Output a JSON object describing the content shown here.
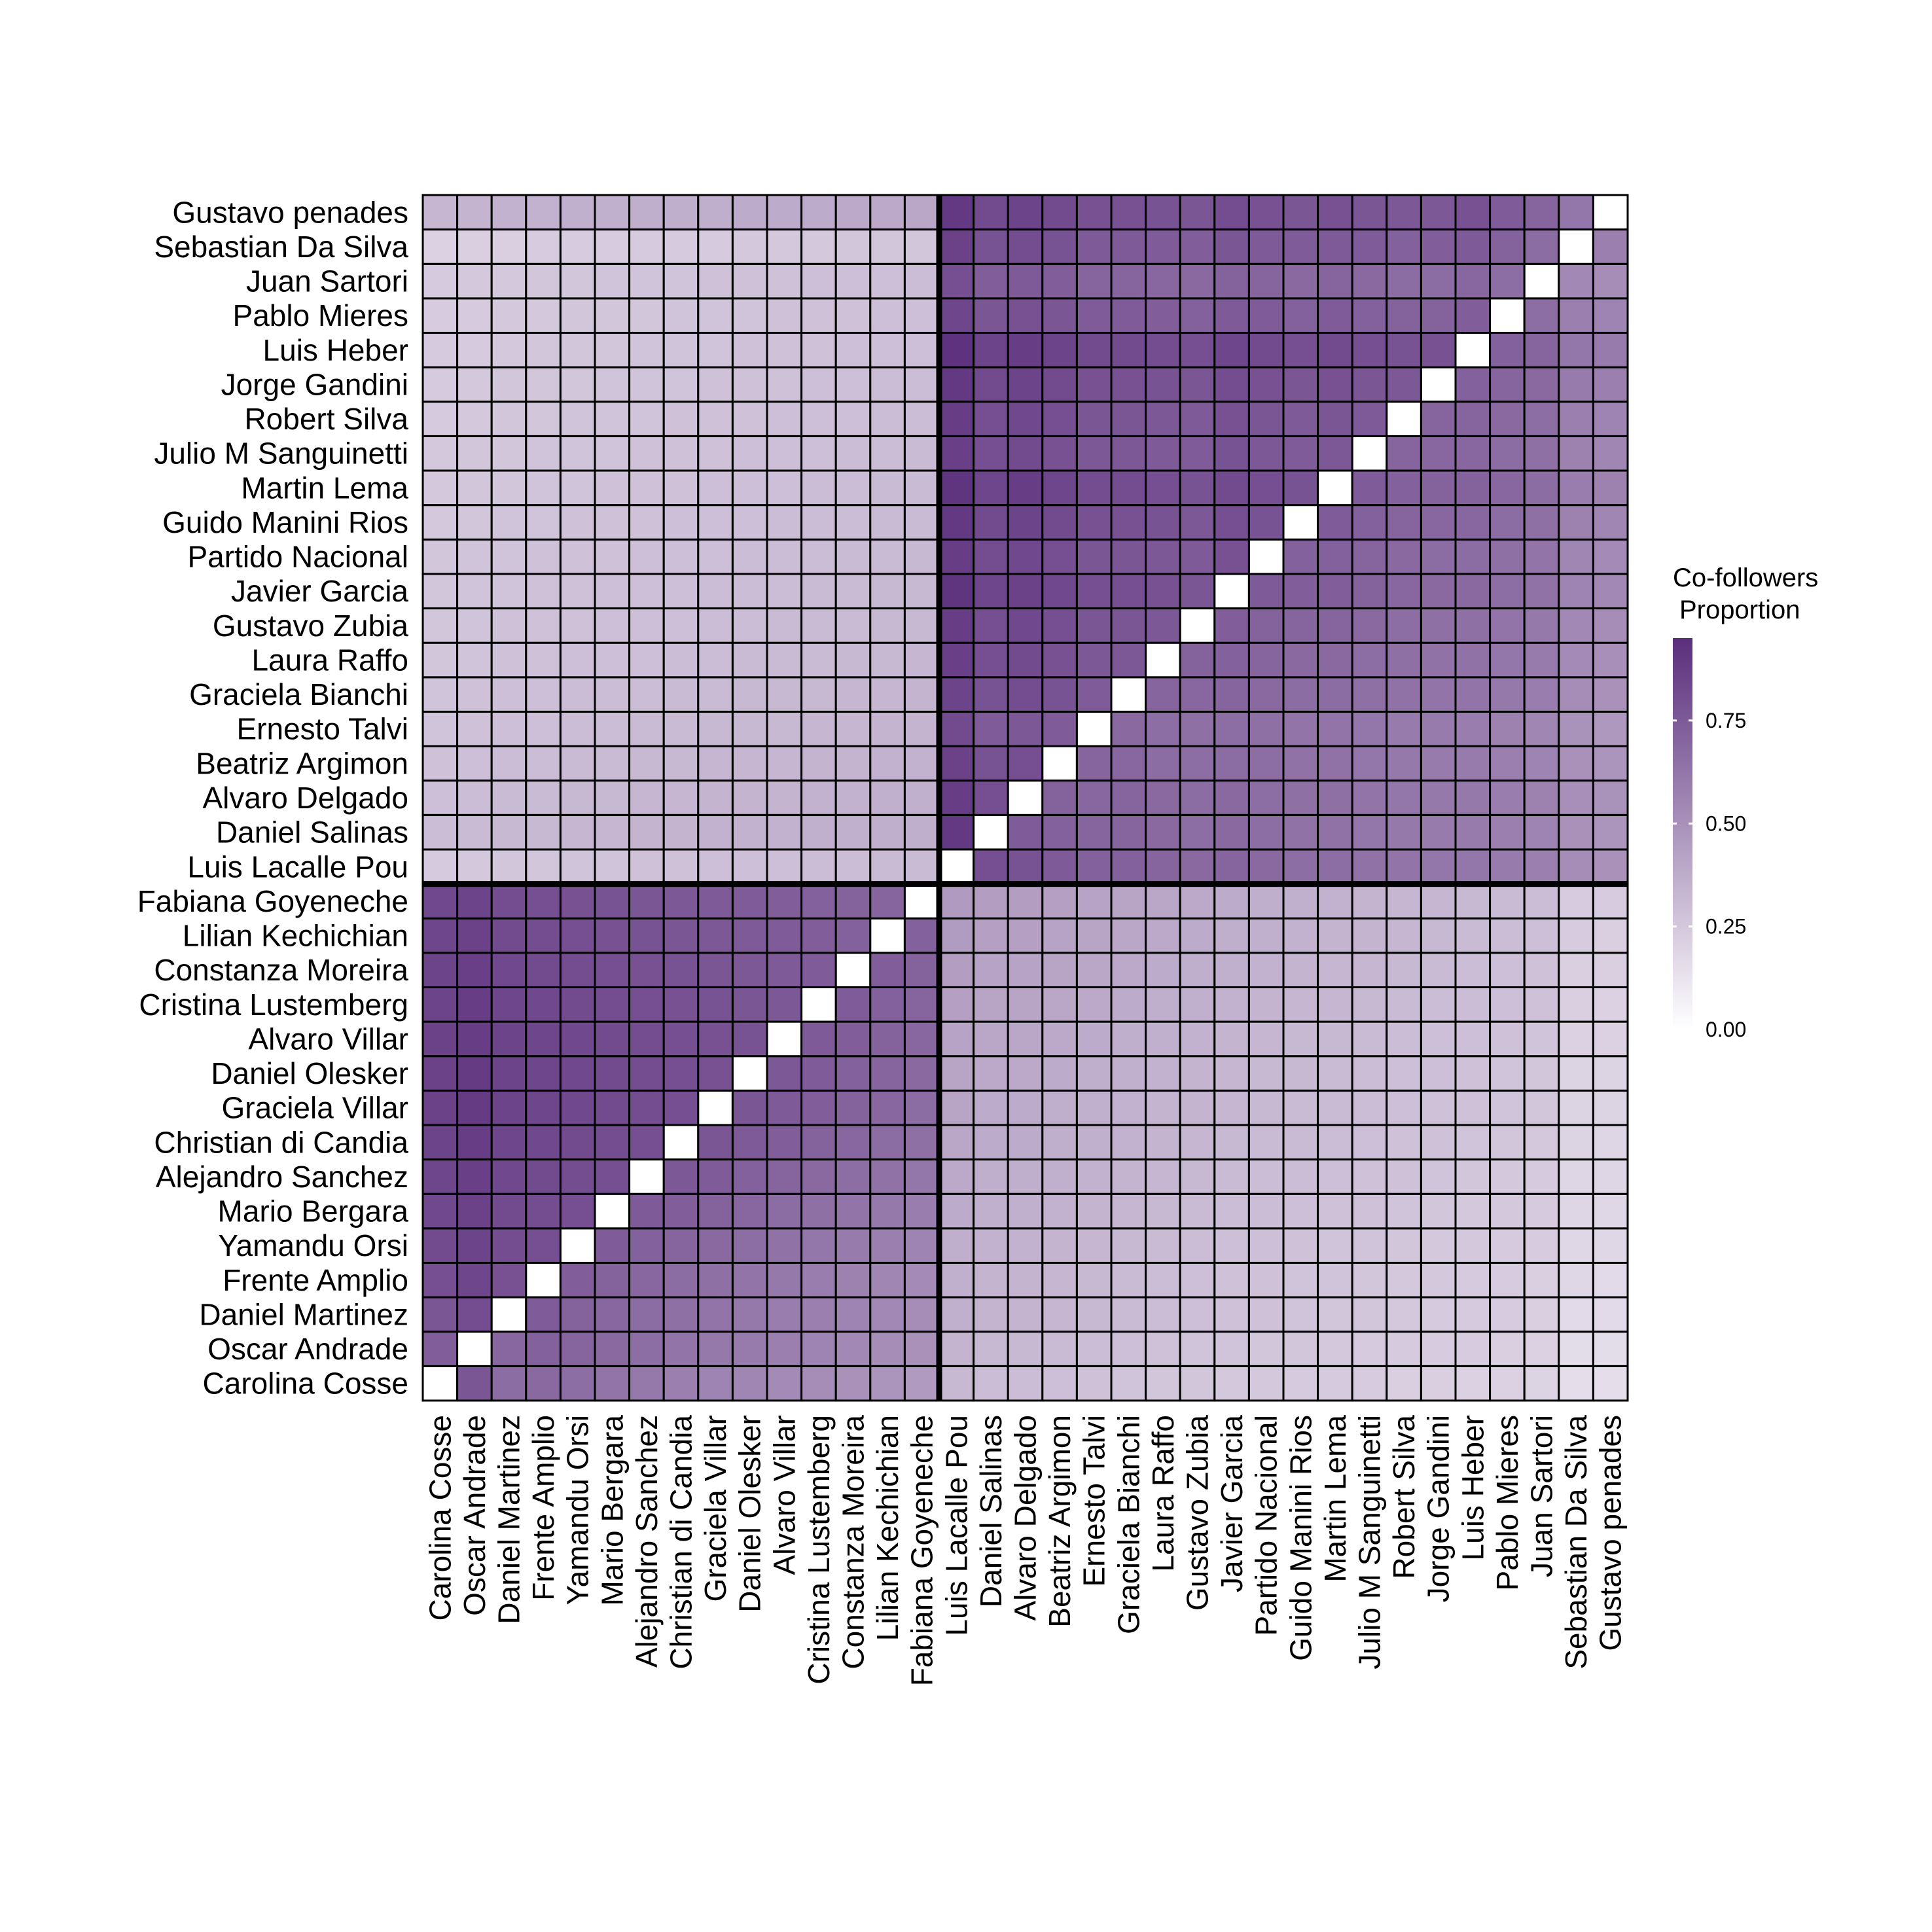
{
  "chart_data": {
    "type": "heatmap",
    "title": "",
    "xlabel": "",
    "ylabel": "",
    "legend": {
      "title_lines": [
        "Co-followers",
        "Proportion"
      ],
      "ticks": [
        0.0,
        0.25,
        0.5,
        0.75
      ],
      "tick_labels": [
        "0.00",
        "0.25",
        "0.50",
        "0.75"
      ],
      "range": [
        0,
        0.95
      ],
      "color_low": "#ffffff",
      "color_high": "#5b2e7c",
      "placement": "right"
    },
    "labels": [
      "Carolina Cosse",
      "Oscar Andrade",
      "Daniel Martinez",
      "Frente Amplio",
      "Yamandu Orsi",
      "Mario Bergara",
      "Alejandro Sanchez",
      "Christian di Candia",
      "Graciela Villar",
      "Daniel Olesker",
      "Alvaro Villar",
      "Cristina Lustemberg",
      "Constanza Moreira",
      "Lilian Kechichian",
      "Fabiana Goyeneche",
      "Luis Lacalle Pou",
      "Daniel Salinas",
      "Alvaro Delgado",
      "Beatriz Argimon",
      "Ernesto Talvi",
      "Graciela Bianchi",
      "Laura Raffo",
      "Gustavo Zubia",
      "Javier Garcia",
      "Partido Nacional",
      "Guido Manini Rios",
      "Martin Lema",
      "Julio M Sanguinetti",
      "Robert Silva",
      "Jorge Gandini",
      "Luis Heber",
      "Pablo Mieres",
      "Juan Sartori",
      "Sebastian Da Silva",
      "Gustavo penades"
    ],
    "group_split_after": 15,
    "diagonal": "blank",
    "matrix": [
      [
        null,
        0.77,
        0.67,
        0.68,
        0.66,
        0.63,
        0.61,
        0.58,
        0.56,
        0.55,
        0.53,
        0.52,
        0.5,
        0.48,
        0.46,
        0.32,
        0.3,
        0.3,
        0.29,
        0.28,
        0.27,
        0.26,
        0.26,
        0.25,
        0.25,
        0.24,
        0.24,
        0.23,
        0.22,
        0.22,
        0.21,
        0.21,
        0.2,
        0.15,
        0.15
      ],
      [
        0.73,
        null,
        0.69,
        0.72,
        0.7,
        0.68,
        0.66,
        0.63,
        0.61,
        0.6,
        0.58,
        0.56,
        0.54,
        0.52,
        0.5,
        0.34,
        0.32,
        0.32,
        0.31,
        0.3,
        0.29,
        0.28,
        0.27,
        0.27,
        0.26,
        0.26,
        0.25,
        0.24,
        0.24,
        0.23,
        0.23,
        0.22,
        0.21,
        0.16,
        0.16
      ],
      [
        0.77,
        0.81,
        null,
        0.74,
        0.71,
        0.69,
        0.67,
        0.65,
        0.63,
        0.61,
        0.59,
        0.58,
        0.56,
        0.54,
        0.52,
        0.36,
        0.34,
        0.34,
        0.33,
        0.32,
        0.31,
        0.3,
        0.29,
        0.28,
        0.28,
        0.27,
        0.26,
        0.26,
        0.25,
        0.24,
        0.24,
        0.23,
        0.22,
        0.17,
        0.17
      ],
      [
        0.8,
        0.84,
        0.79,
        null,
        0.73,
        0.71,
        0.69,
        0.67,
        0.65,
        0.63,
        0.61,
        0.59,
        0.57,
        0.55,
        0.53,
        0.36,
        0.34,
        0.34,
        0.33,
        0.32,
        0.31,
        0.3,
        0.29,
        0.28,
        0.28,
        0.27,
        0.27,
        0.26,
        0.25,
        0.25,
        0.24,
        0.23,
        0.22,
        0.18,
        0.17
      ],
      [
        0.82,
        0.85,
        0.81,
        0.8,
        null,
        0.74,
        0.72,
        0.7,
        0.68,
        0.66,
        0.64,
        0.62,
        0.6,
        0.58,
        0.56,
        0.37,
        0.35,
        0.35,
        0.34,
        0.33,
        0.32,
        0.31,
        0.3,
        0.29,
        0.29,
        0.28,
        0.27,
        0.27,
        0.26,
        0.25,
        0.25,
        0.24,
        0.23,
        0.18,
        0.18
      ],
      [
        0.83,
        0.86,
        0.82,
        0.81,
        0.8,
        null,
        0.75,
        0.73,
        0.71,
        0.69,
        0.67,
        0.65,
        0.63,
        0.61,
        0.59,
        0.38,
        0.36,
        0.36,
        0.35,
        0.34,
        0.33,
        0.32,
        0.31,
        0.3,
        0.3,
        0.29,
        0.28,
        0.28,
        0.27,
        0.26,
        0.25,
        0.25,
        0.24,
        0.19,
        0.18
      ],
      [
        0.84,
        0.87,
        0.83,
        0.82,
        0.81,
        0.8,
        null,
        0.76,
        0.74,
        0.72,
        0.7,
        0.68,
        0.66,
        0.64,
        0.62,
        0.39,
        0.37,
        0.37,
        0.36,
        0.35,
        0.34,
        0.33,
        0.32,
        0.31,
        0.3,
        0.3,
        0.29,
        0.28,
        0.28,
        0.27,
        0.26,
        0.25,
        0.24,
        0.19,
        0.19
      ],
      [
        0.85,
        0.88,
        0.84,
        0.83,
        0.82,
        0.81,
        0.8,
        null,
        0.77,
        0.75,
        0.73,
        0.71,
        0.69,
        0.67,
        0.65,
        0.4,
        0.38,
        0.38,
        0.37,
        0.36,
        0.35,
        0.34,
        0.33,
        0.32,
        0.31,
        0.31,
        0.3,
        0.29,
        0.28,
        0.28,
        0.27,
        0.26,
        0.25,
        0.2,
        0.19
      ],
      [
        0.86,
        0.89,
        0.85,
        0.84,
        0.83,
        0.82,
        0.81,
        0.8,
        null,
        0.77,
        0.75,
        0.73,
        0.71,
        0.69,
        0.67,
        0.41,
        0.38,
        0.38,
        0.37,
        0.36,
        0.35,
        0.34,
        0.34,
        0.33,
        0.32,
        0.31,
        0.31,
        0.3,
        0.29,
        0.28,
        0.28,
        0.27,
        0.26,
        0.2,
        0.2
      ],
      [
        0.86,
        0.89,
        0.85,
        0.84,
        0.83,
        0.82,
        0.81,
        0.8,
        0.79,
        null,
        0.76,
        0.74,
        0.72,
        0.7,
        0.68,
        0.41,
        0.39,
        0.39,
        0.38,
        0.37,
        0.36,
        0.35,
        0.34,
        0.33,
        0.32,
        0.32,
        0.31,
        0.3,
        0.29,
        0.29,
        0.28,
        0.27,
        0.26,
        0.2,
        0.2
      ],
      [
        0.86,
        0.88,
        0.85,
        0.84,
        0.83,
        0.82,
        0.81,
        0.8,
        0.79,
        0.78,
        null,
        0.75,
        0.73,
        0.71,
        0.69,
        0.42,
        0.4,
        0.4,
        0.39,
        0.38,
        0.37,
        0.36,
        0.35,
        0.34,
        0.33,
        0.32,
        0.32,
        0.31,
        0.3,
        0.29,
        0.29,
        0.28,
        0.27,
        0.21,
        0.21
      ],
      [
        0.85,
        0.88,
        0.84,
        0.83,
        0.82,
        0.81,
        0.8,
        0.79,
        0.78,
        0.77,
        0.76,
        null,
        0.74,
        0.72,
        0.7,
        0.43,
        0.41,
        0.41,
        0.4,
        0.39,
        0.38,
        0.37,
        0.36,
        0.35,
        0.34,
        0.33,
        0.33,
        0.32,
        0.31,
        0.3,
        0.3,
        0.29,
        0.28,
        0.22,
        0.21
      ],
      [
        0.85,
        0.87,
        0.83,
        0.82,
        0.81,
        0.8,
        0.79,
        0.78,
        0.77,
        0.76,
        0.75,
        0.74,
        null,
        0.73,
        0.71,
        0.44,
        0.42,
        0.42,
        0.41,
        0.4,
        0.39,
        0.38,
        0.37,
        0.36,
        0.35,
        0.34,
        0.33,
        0.33,
        0.32,
        0.31,
        0.3,
        0.29,
        0.28,
        0.22,
        0.22
      ],
      [
        0.84,
        0.86,
        0.82,
        0.81,
        0.8,
        0.79,
        0.78,
        0.77,
        0.76,
        0.75,
        0.74,
        0.73,
        0.72,
        null,
        0.72,
        0.45,
        0.43,
        0.43,
        0.42,
        0.41,
        0.4,
        0.39,
        0.38,
        0.37,
        0.36,
        0.35,
        0.34,
        0.34,
        0.33,
        0.32,
        0.31,
        0.3,
        0.29,
        0.23,
        0.22
      ],
      [
        0.83,
        0.85,
        0.81,
        0.8,
        0.79,
        0.78,
        0.77,
        0.76,
        0.75,
        0.74,
        0.73,
        0.72,
        0.71,
        0.7,
        null,
        0.46,
        0.44,
        0.44,
        0.43,
        0.42,
        0.41,
        0.4,
        0.39,
        0.38,
        0.37,
        0.36,
        0.35,
        0.34,
        0.33,
        0.33,
        0.32,
        0.31,
        0.3,
        0.23,
        0.23
      ],
      [
        0.24,
        0.25,
        0.26,
        0.26,
        0.27,
        0.27,
        0.28,
        0.28,
        0.29,
        0.29,
        0.29,
        0.3,
        0.3,
        0.31,
        0.31,
        null,
        0.8,
        0.78,
        0.75,
        0.72,
        0.72,
        0.7,
        0.68,
        0.7,
        0.68,
        0.66,
        0.66,
        0.64,
        0.63,
        0.62,
        0.62,
        0.6,
        0.58,
        0.52,
        0.5
      ],
      [
        0.3,
        0.31,
        0.32,
        0.32,
        0.33,
        0.33,
        0.34,
        0.34,
        0.35,
        0.35,
        0.35,
        0.36,
        0.36,
        0.37,
        0.37,
        0.9,
        null,
        0.74,
        0.72,
        0.7,
        0.7,
        0.68,
        0.66,
        0.68,
        0.66,
        0.64,
        0.64,
        0.62,
        0.61,
        0.6,
        0.6,
        0.58,
        0.56,
        0.5,
        0.48
      ],
      [
        0.29,
        0.3,
        0.31,
        0.31,
        0.32,
        0.32,
        0.33,
        0.33,
        0.34,
        0.34,
        0.34,
        0.35,
        0.35,
        0.36,
        0.36,
        0.88,
        0.8,
        null,
        0.71,
        0.69,
        0.7,
        0.68,
        0.67,
        0.68,
        0.66,
        0.65,
        0.65,
        0.63,
        0.62,
        0.61,
        0.61,
        0.59,
        0.57,
        0.51,
        0.49
      ],
      [
        0.28,
        0.29,
        0.3,
        0.3,
        0.31,
        0.31,
        0.32,
        0.32,
        0.33,
        0.33,
        0.33,
        0.34,
        0.34,
        0.35,
        0.35,
        0.86,
        0.78,
        0.8,
        null,
        0.7,
        0.69,
        0.67,
        0.66,
        0.67,
        0.66,
        0.64,
        0.64,
        0.62,
        0.61,
        0.6,
        0.6,
        0.58,
        0.56,
        0.5,
        0.48
      ],
      [
        0.27,
        0.28,
        0.29,
        0.29,
        0.3,
        0.3,
        0.31,
        0.31,
        0.32,
        0.32,
        0.32,
        0.33,
        0.33,
        0.34,
        0.34,
        0.82,
        0.74,
        0.76,
        0.74,
        null,
        0.68,
        0.66,
        0.65,
        0.66,
        0.65,
        0.63,
        0.63,
        0.62,
        0.6,
        0.6,
        0.59,
        0.57,
        0.55,
        0.49,
        0.47
      ],
      [
        0.27,
        0.28,
        0.29,
        0.29,
        0.3,
        0.3,
        0.3,
        0.31,
        0.31,
        0.32,
        0.32,
        0.32,
        0.33,
        0.33,
        0.34,
        0.85,
        0.78,
        0.81,
        0.78,
        0.74,
        null,
        0.7,
        0.69,
        0.7,
        0.68,
        0.67,
        0.67,
        0.65,
        0.64,
        0.63,
        0.63,
        0.61,
        0.59,
        0.52,
        0.5
      ],
      [
        0.26,
        0.27,
        0.28,
        0.28,
        0.29,
        0.29,
        0.29,
        0.3,
        0.3,
        0.31,
        0.31,
        0.31,
        0.32,
        0.32,
        0.33,
        0.87,
        0.8,
        0.82,
        0.79,
        0.76,
        0.76,
        null,
        0.71,
        0.72,
        0.7,
        0.68,
        0.68,
        0.66,
        0.65,
        0.64,
        0.64,
        0.62,
        0.6,
        0.53,
        0.51
      ],
      [
        0.26,
        0.27,
        0.28,
        0.28,
        0.28,
        0.29,
        0.29,
        0.29,
        0.3,
        0.3,
        0.31,
        0.31,
        0.31,
        0.32,
        0.32,
        0.88,
        0.8,
        0.83,
        0.8,
        0.77,
        0.77,
        0.76,
        null,
        0.73,
        0.71,
        0.7,
        0.7,
        0.68,
        0.66,
        0.65,
        0.65,
        0.63,
        0.61,
        0.54,
        0.52
      ],
      [
        0.26,
        0.27,
        0.27,
        0.28,
        0.28,
        0.29,
        0.29,
        0.29,
        0.3,
        0.3,
        0.3,
        0.31,
        0.31,
        0.32,
        0.32,
        0.92,
        0.84,
        0.86,
        0.83,
        0.8,
        0.8,
        0.79,
        0.77,
        null,
        0.75,
        0.73,
        0.73,
        0.71,
        0.69,
        0.68,
        0.68,
        0.66,
        0.64,
        0.56,
        0.54
      ],
      [
        0.26,
        0.27,
        0.27,
        0.28,
        0.28,
        0.28,
        0.29,
        0.29,
        0.29,
        0.3,
        0.3,
        0.3,
        0.31,
        0.31,
        0.32,
        0.88,
        0.81,
        0.83,
        0.8,
        0.77,
        0.77,
        0.76,
        0.75,
        0.79,
        null,
        0.72,
        0.72,
        0.7,
        0.68,
        0.67,
        0.67,
        0.65,
        0.63,
        0.55,
        0.53
      ],
      [
        0.25,
        0.26,
        0.27,
        0.27,
        0.28,
        0.28,
        0.28,
        0.29,
        0.29,
        0.29,
        0.3,
        0.3,
        0.3,
        0.31,
        0.31,
        0.9,
        0.82,
        0.85,
        0.82,
        0.79,
        0.79,
        0.78,
        0.76,
        0.8,
        0.78,
        null,
        0.74,
        0.72,
        0.7,
        0.69,
        0.69,
        0.67,
        0.65,
        0.57,
        0.55
      ],
      [
        0.25,
        0.26,
        0.26,
        0.27,
        0.27,
        0.28,
        0.28,
        0.28,
        0.29,
        0.29,
        0.29,
        0.3,
        0.3,
        0.31,
        0.31,
        0.92,
        0.84,
        0.88,
        0.84,
        0.81,
        0.81,
        0.8,
        0.78,
        0.82,
        0.8,
        0.78,
        null,
        0.74,
        0.72,
        0.71,
        0.71,
        0.69,
        0.67,
        0.59,
        0.57
      ],
      [
        0.25,
        0.26,
        0.26,
        0.27,
        0.27,
        0.27,
        0.28,
        0.28,
        0.28,
        0.29,
        0.29,
        0.29,
        0.3,
        0.3,
        0.31,
        0.87,
        0.8,
        0.82,
        0.79,
        0.76,
        0.76,
        0.75,
        0.74,
        0.78,
        0.76,
        0.74,
        0.76,
        null,
        0.7,
        0.69,
        0.69,
        0.67,
        0.65,
        0.57,
        0.55
      ],
      [
        0.24,
        0.25,
        0.26,
        0.26,
        0.27,
        0.27,
        0.27,
        0.28,
        0.28,
        0.28,
        0.29,
        0.29,
        0.29,
        0.3,
        0.3,
        0.88,
        0.8,
        0.83,
        0.8,
        0.77,
        0.77,
        0.76,
        0.75,
        0.79,
        0.77,
        0.75,
        0.77,
        0.75,
        null,
        0.7,
        0.7,
        0.68,
        0.66,
        0.58,
        0.56
      ],
      [
        0.24,
        0.25,
        0.26,
        0.26,
        0.26,
        0.27,
        0.27,
        0.27,
        0.28,
        0.28,
        0.28,
        0.29,
        0.29,
        0.3,
        0.3,
        0.9,
        0.82,
        0.85,
        0.82,
        0.79,
        0.79,
        0.78,
        0.77,
        0.81,
        0.79,
        0.77,
        0.79,
        0.77,
        0.76,
        null,
        0.72,
        0.7,
        0.68,
        0.6,
        0.58
      ],
      [
        0.24,
        0.24,
        0.25,
        0.26,
        0.26,
        0.26,
        0.27,
        0.27,
        0.27,
        0.28,
        0.28,
        0.28,
        0.29,
        0.29,
        0.29,
        0.93,
        0.85,
        0.88,
        0.85,
        0.82,
        0.82,
        0.81,
        0.8,
        0.84,
        0.82,
        0.8,
        0.82,
        0.8,
        0.78,
        0.79,
        null,
        0.72,
        0.7,
        0.62,
        0.6
      ],
      [
        0.23,
        0.24,
        0.25,
        0.25,
        0.26,
        0.26,
        0.26,
        0.27,
        0.27,
        0.27,
        0.28,
        0.28,
        0.28,
        0.29,
        0.29,
        0.84,
        0.77,
        0.79,
        0.77,
        0.74,
        0.74,
        0.73,
        0.72,
        0.75,
        0.74,
        0.72,
        0.74,
        0.72,
        0.71,
        0.71,
        0.73,
        null,
        0.66,
        0.58,
        0.56
      ],
      [
        0.24,
        0.25,
        0.25,
        0.26,
        0.26,
        0.27,
        0.27,
        0.27,
        0.28,
        0.28,
        0.28,
        0.29,
        0.29,
        0.29,
        0.3,
        0.8,
        0.73,
        0.75,
        0.73,
        0.7,
        0.7,
        0.69,
        0.68,
        0.71,
        0.7,
        0.68,
        0.7,
        0.68,
        0.67,
        0.67,
        0.69,
        0.66,
        null,
        0.54,
        0.52
      ],
      [
        0.21,
        0.22,
        0.22,
        0.23,
        0.23,
        0.23,
        0.24,
        0.24,
        0.24,
        0.25,
        0.25,
        0.25,
        0.26,
        0.26,
        0.26,
        0.86,
        0.78,
        0.81,
        0.78,
        0.75,
        0.75,
        0.74,
        0.73,
        0.77,
        0.75,
        0.74,
        0.75,
        0.74,
        0.72,
        0.73,
        0.75,
        0.71,
        0.67,
        null,
        0.58
      ],
      [
        0.33,
        0.34,
        0.35,
        0.35,
        0.36,
        0.36,
        0.37,
        0.37,
        0.37,
        0.38,
        0.38,
        0.38,
        0.39,
        0.39,
        0.4,
        0.9,
        0.82,
        0.85,
        0.82,
        0.79,
        0.79,
        0.78,
        0.77,
        0.81,
        0.79,
        0.77,
        0.79,
        0.77,
        0.76,
        0.76,
        0.79,
        0.74,
        0.7,
        0.62,
        null
      ]
    ]
  }
}
